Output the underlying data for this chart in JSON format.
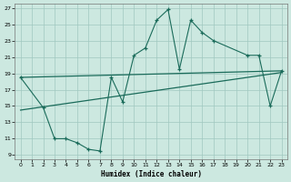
{
  "xlabel": "Humidex (Indice chaleur)",
  "background_color": "#cce8e0",
  "grid_color": "#a0c8c0",
  "line_color": "#1a6b5a",
  "xlim": [
    -0.5,
    23.5
  ],
  "ylim": [
    8.5,
    27.5
  ],
  "xticks": [
    0,
    1,
    2,
    3,
    4,
    5,
    6,
    7,
    8,
    9,
    10,
    11,
    12,
    13,
    14,
    15,
    16,
    17,
    18,
    19,
    20,
    21,
    22,
    23
  ],
  "yticks": [
    9,
    11,
    13,
    15,
    17,
    19,
    21,
    23,
    25,
    27
  ],
  "line1_x": [
    0,
    23
  ],
  "line1_y": [
    18.5,
    19.3
  ],
  "line2_x": [
    0,
    23
  ],
  "line2_y": [
    14.5,
    19.1
  ],
  "data_x": [
    0,
    2,
    3,
    4,
    5,
    6,
    7,
    8,
    9,
    10,
    11,
    12,
    13,
    14,
    15,
    16,
    17,
    20,
    21,
    22,
    23
  ],
  "data_y": [
    18.5,
    14.8,
    11.0,
    11.0,
    10.5,
    9.7,
    9.5,
    18.5,
    15.5,
    21.2,
    22.1,
    25.5,
    26.8,
    19.5,
    25.5,
    24.0,
    23.0,
    21.2,
    21.2,
    15.0,
    19.3
  ]
}
